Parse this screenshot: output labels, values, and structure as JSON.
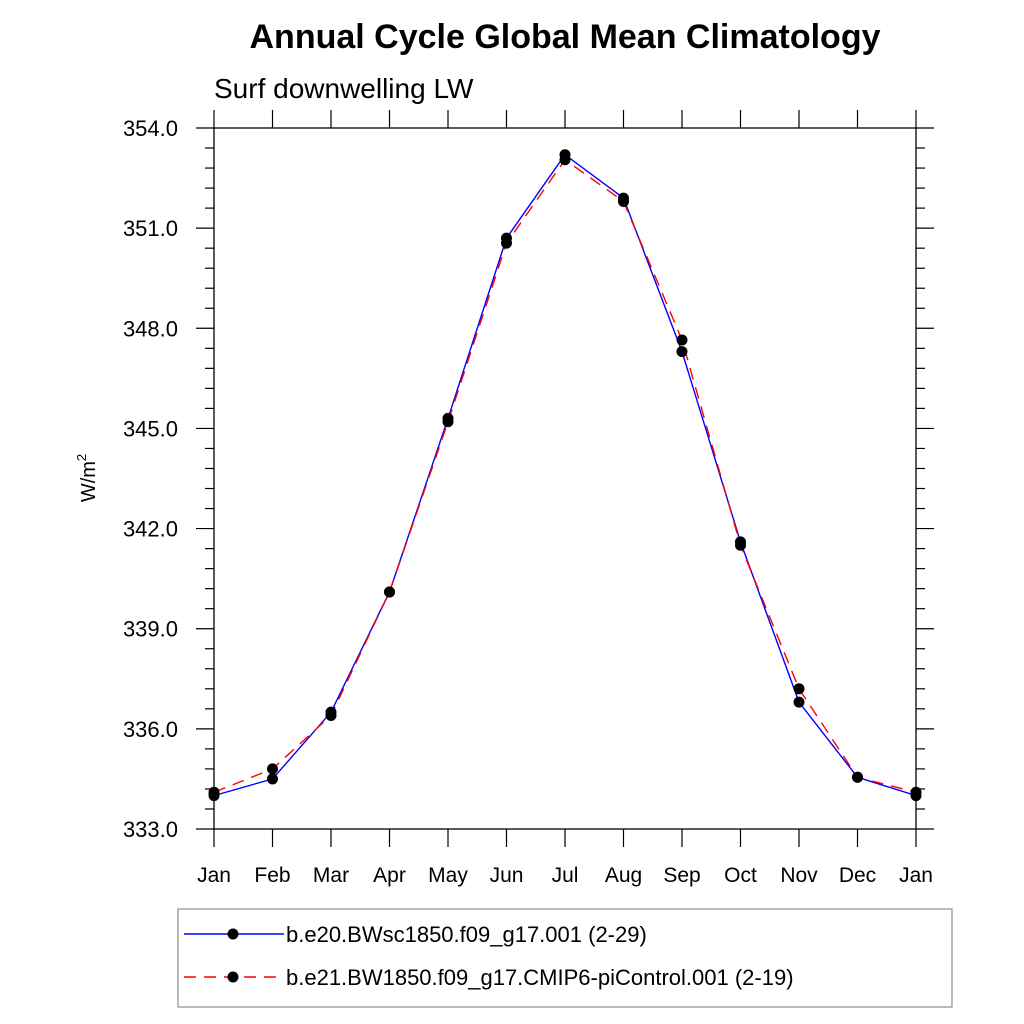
{
  "chart_data": {
    "type": "line",
    "title": "Annual Cycle Global Mean Climatology",
    "subtitle": "Surf downwelling LW",
    "xlabel": "",
    "ylabel": "W/m",
    "ylabel_superscript": "2",
    "categories": [
      "Jan",
      "Feb",
      "Mar",
      "Apr",
      "May",
      "Jun",
      "Jul",
      "Aug",
      "Sep",
      "Oct",
      "Nov",
      "Dec",
      "Jan"
    ],
    "ylim": [
      333.0,
      354.0
    ],
    "yticks": [
      333.0,
      336.0,
      339.0,
      342.0,
      345.0,
      348.0,
      351.0,
      354.0
    ],
    "ytick_labels": [
      "333.0",
      "336.0",
      "339.0",
      "342.0",
      "345.0",
      "348.0",
      "351.0",
      "354.0"
    ],
    "grid": false,
    "legend_position": "bottom",
    "series": [
      {
        "name": "b.e20.BWsc1850.f09_g17.001 (2-29)",
        "color": "#0000ff",
        "line_style": "solid",
        "marker": "filled-circle",
        "values": [
          334.0,
          334.5,
          336.5,
          340.1,
          345.3,
          350.7,
          353.2,
          351.9,
          347.3,
          341.6,
          336.8,
          334.55,
          334.0
        ]
      },
      {
        "name": "b.e21.BW1850.f09_g17.CMIP6-piControl.001 (2-19)",
        "color": "#ff0000",
        "line_style": "dashed",
        "marker": "filled-circle",
        "values": [
          334.1,
          334.8,
          336.4,
          340.1,
          345.2,
          350.55,
          353.05,
          351.8,
          347.65,
          341.5,
          337.2,
          334.55,
          334.1
        ]
      }
    ]
  }
}
